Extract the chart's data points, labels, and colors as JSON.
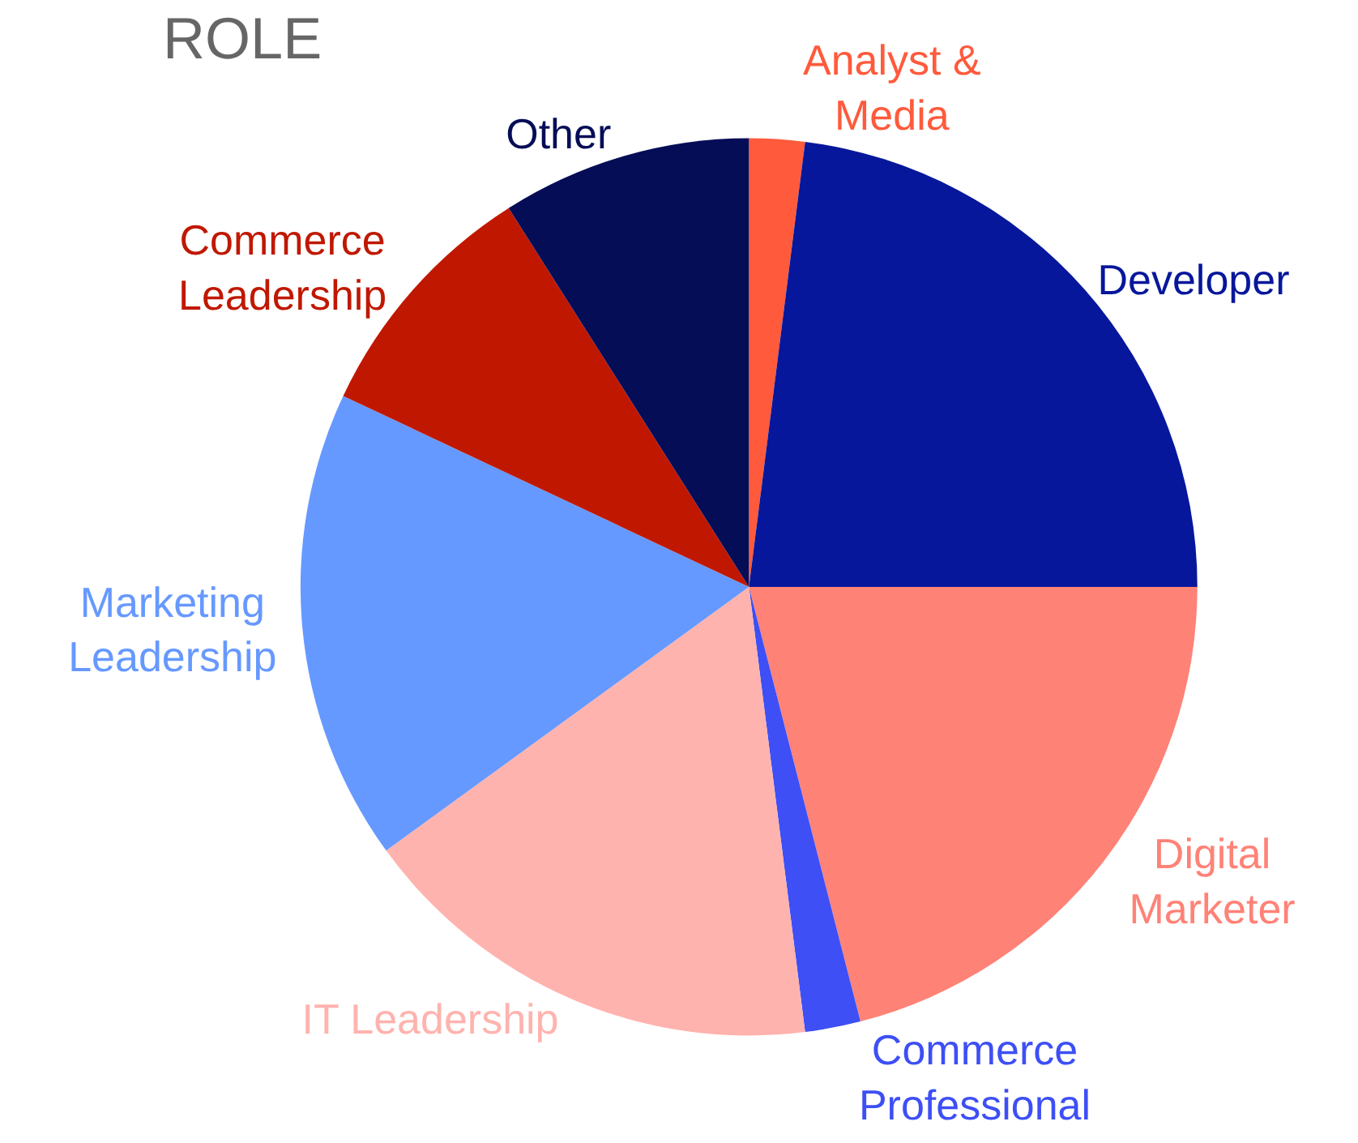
{
  "chart_data": {
    "type": "pie",
    "title": "ROLE",
    "categories": [
      "Analyst & Media",
      "Developer",
      "Digital Marketer",
      "Commerce Professional",
      "IT Leadership",
      "Marketing Leadership",
      "Commerce Leadership",
      "Other"
    ],
    "values": [
      2,
      23,
      21,
      2,
      17,
      17,
      9,
      9
    ],
    "colors": [
      "#ff5a3c",
      "#07179b",
      "#ff8277",
      "#3d4ff5",
      "#ffb3ae",
      "#6699ff",
      "#c01800",
      "#060d57"
    ],
    "legend": false
  }
}
